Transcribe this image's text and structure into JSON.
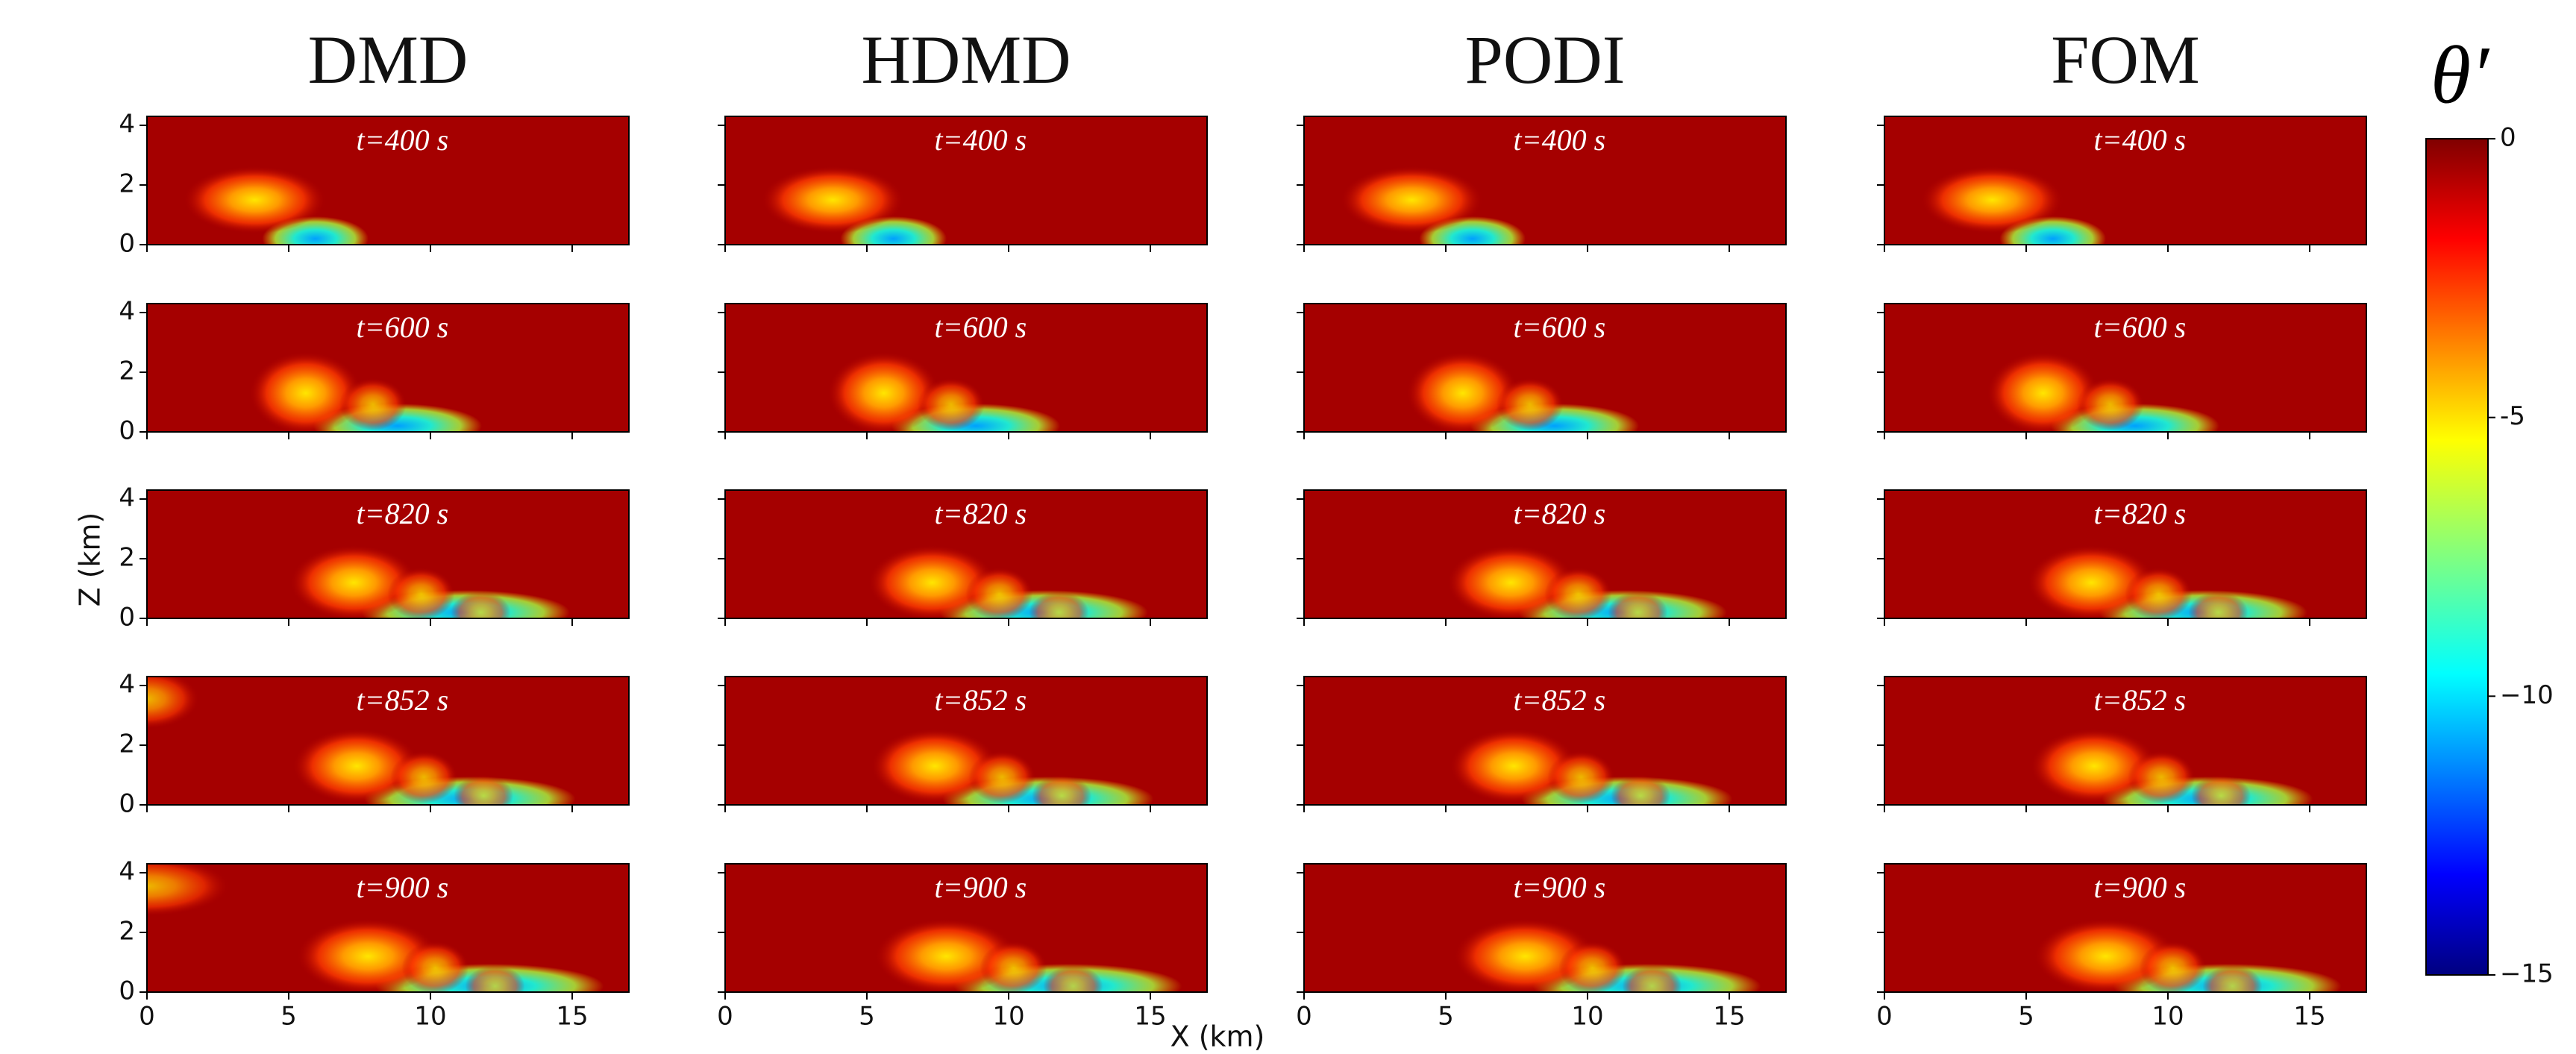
{
  "chart_data": {
    "type": "heatmap",
    "columns": [
      "DMD",
      "HDMD",
      "PODI",
      "FOM"
    ],
    "panel_labels": [
      "t=400 s",
      "t=600 s",
      "t=820 s",
      "t=852 s",
      "t=900 s"
    ],
    "xlabel": "X (km)",
    "ylabel": "Z (km)",
    "xlim": [
      0,
      17
    ],
    "xticks": [
      0,
      5,
      10,
      15
    ],
    "ylim": [
      0,
      4.3
    ],
    "yticks": [
      0,
      2,
      4
    ],
    "colorbar": {
      "label": "θ′",
      "lim": [
        -15,
        0
      ],
      "ticks": [
        0,
        -5,
        {
          "value": -10,
          "label": "−10"
        },
        {
          "value": -15,
          "label": "−15"
        }
      ],
      "colormap": "jet"
    }
  }
}
